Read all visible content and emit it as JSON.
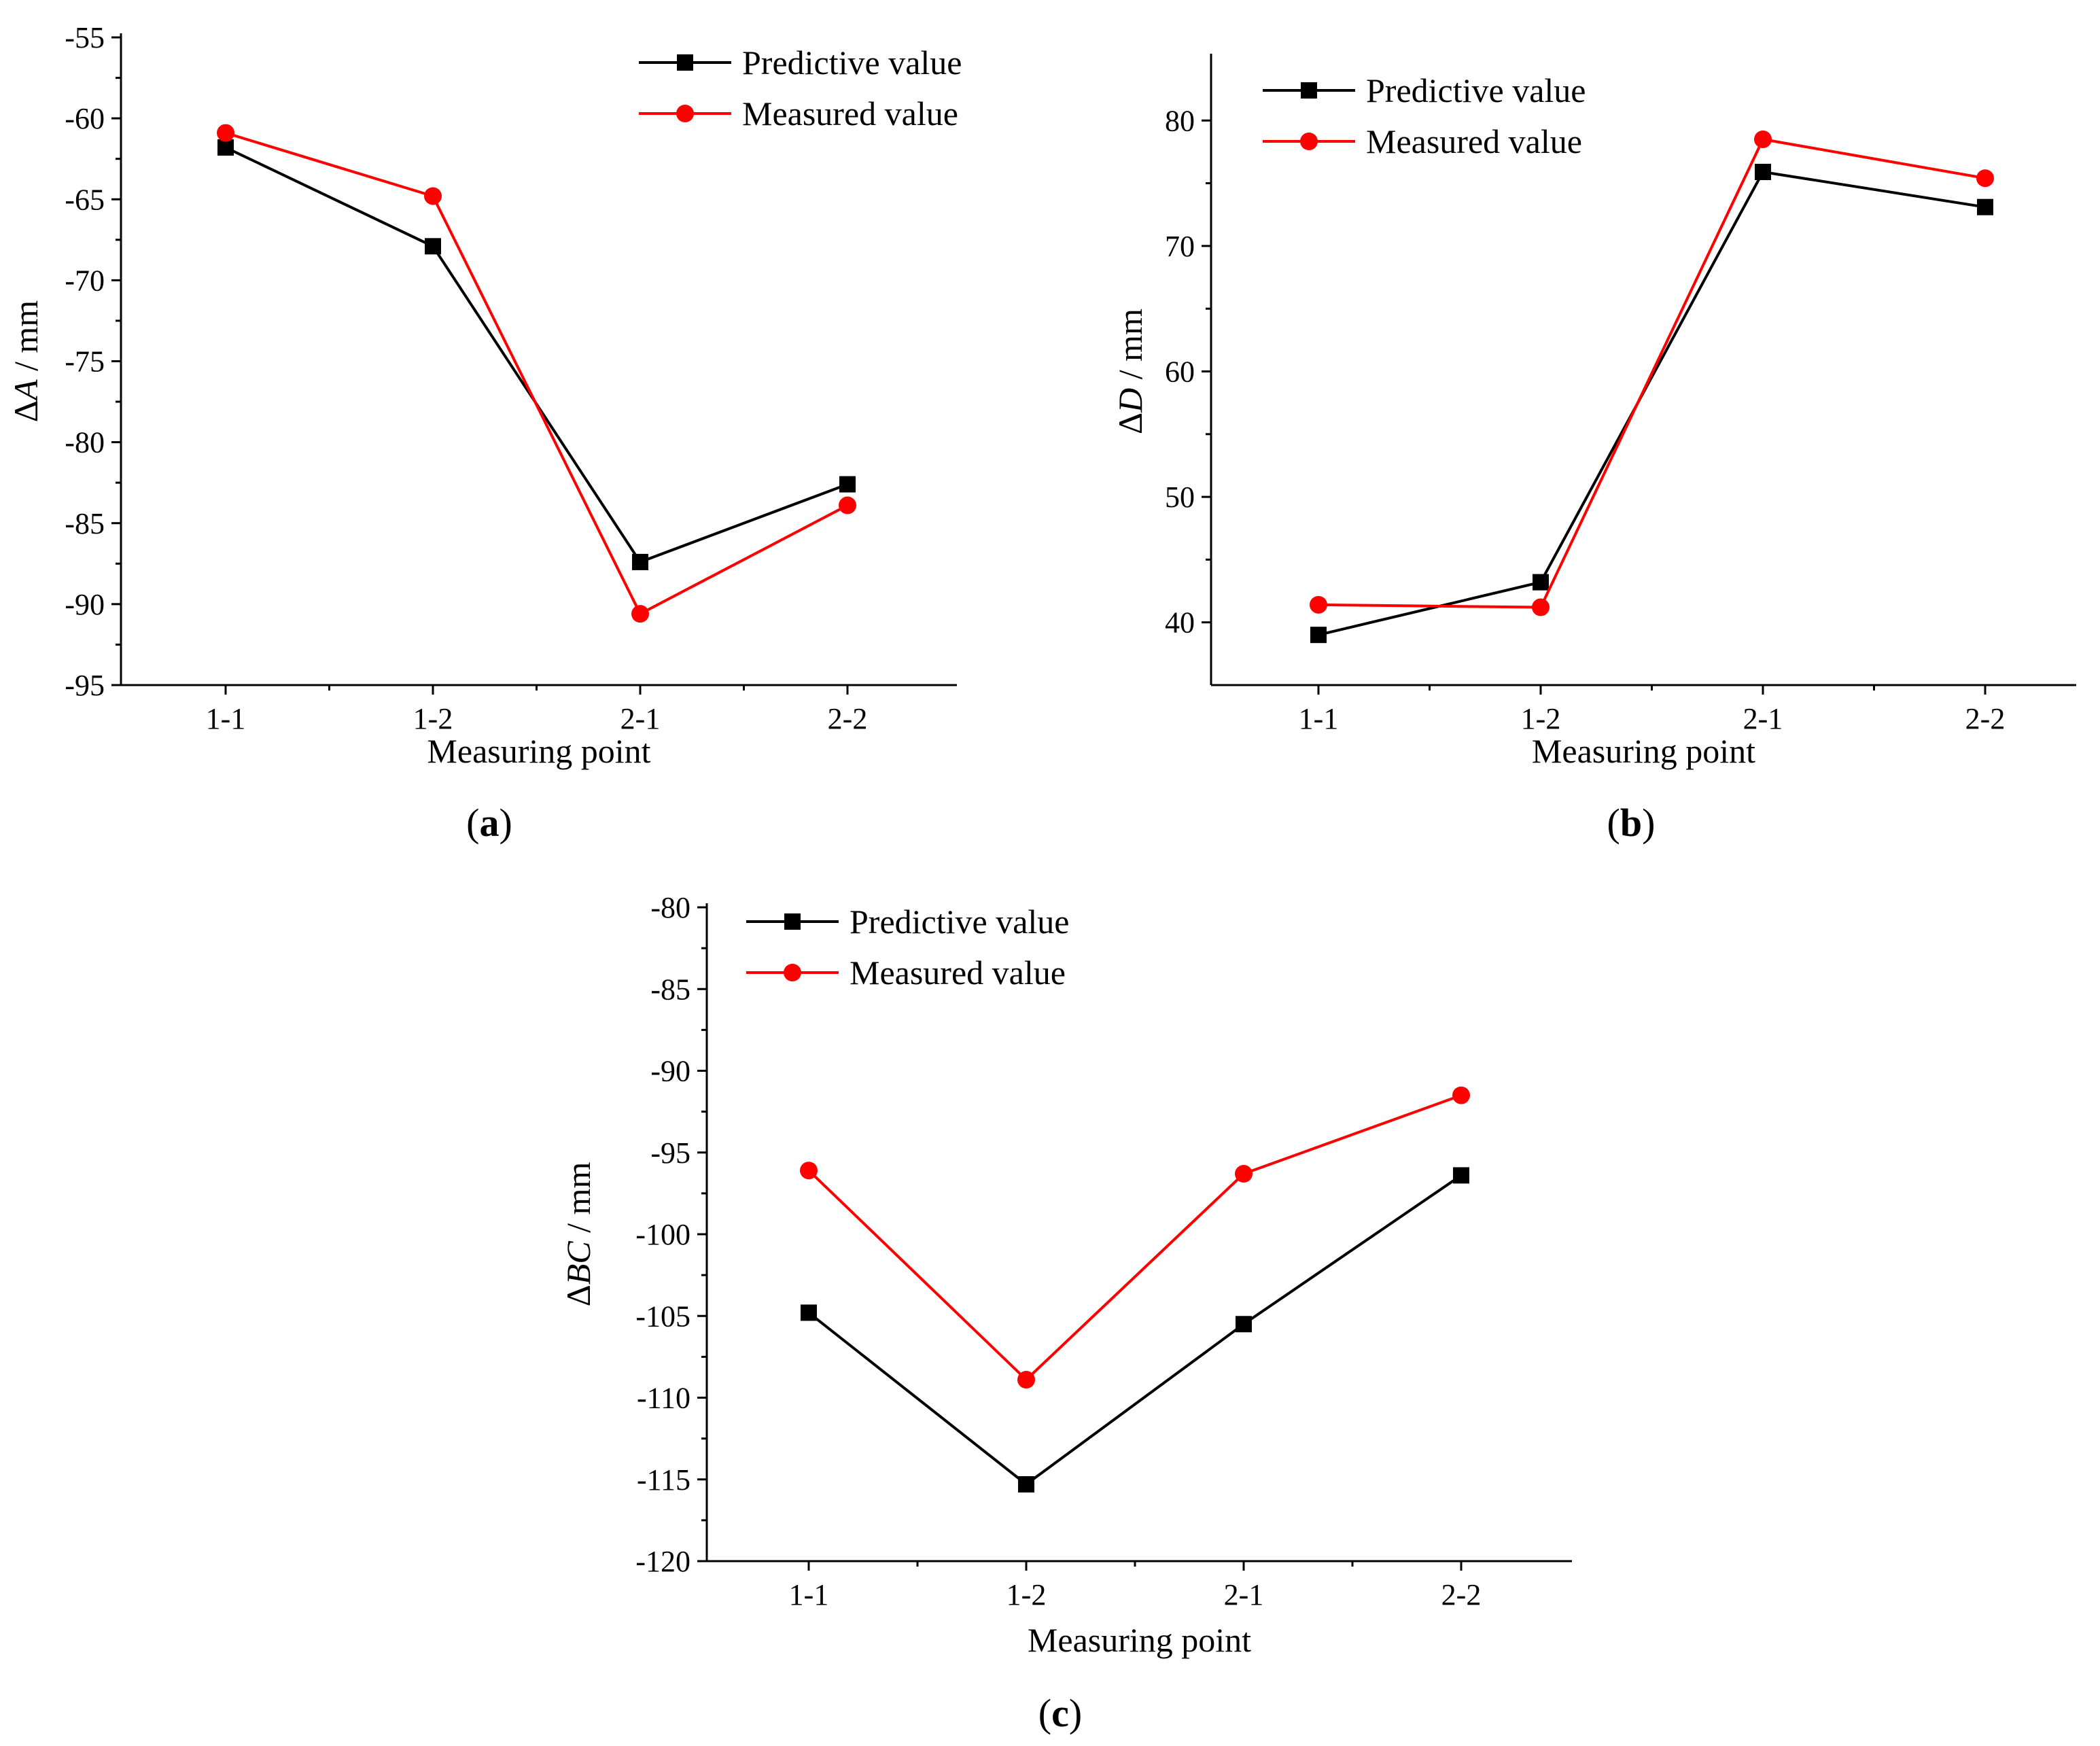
{
  "figure": {
    "series_colors": {
      "predictive": "#000000",
      "measured": "#ff0000"
    }
  },
  "chart_data": [
    {
      "id": "a",
      "type": "line",
      "panel_label": {
        "open": "(",
        "letter": "a",
        "close": ")"
      },
      "xlabel": "Measuring point",
      "ylabel": {
        "prefix": "Δ",
        "symbol": "A",
        "unit": " / mm"
      },
      "categories": [
        "1-1",
        "1-2",
        "2-1",
        "2-2"
      ],
      "ylim": [
        -95,
        -55
      ],
      "yticks": [
        -55,
        -60,
        -65,
        -70,
        -75,
        -80,
        -85,
        -90,
        -95
      ],
      "legend_position": "top-right",
      "series": [
        {
          "name": "Predictive value",
          "marker": "square",
          "color": "#000000",
          "values": [
            -61.8,
            -67.9,
            -87.4,
            -82.6
          ]
        },
        {
          "name": "Measured value",
          "marker": "circle",
          "color": "#ff0000",
          "values": [
            -60.9,
            -64.8,
            -90.6,
            -83.9
          ]
        }
      ]
    },
    {
      "id": "b",
      "type": "line",
      "panel_label": {
        "open": "(",
        "letter": "b",
        "close": ")"
      },
      "xlabel": "Measuring point",
      "ylabel": {
        "prefix": "Δ",
        "symbol": "D",
        "unit": " / mm"
      },
      "categories": [
        "1-1",
        "1-2",
        "2-1",
        "2-2"
      ],
      "ylim": [
        35,
        85
      ],
      "yticks": [
        40,
        50,
        60,
        70,
        80
      ],
      "legend_position": "top-left",
      "series": [
        {
          "name": "Predictive value",
          "marker": "square",
          "color": "#000000",
          "values": [
            39.0,
            43.2,
            75.9,
            73.1
          ]
        },
        {
          "name": "Measured value",
          "marker": "circle",
          "color": "#ff0000",
          "values": [
            41.4,
            41.2,
            78.5,
            75.4
          ]
        }
      ]
    },
    {
      "id": "c",
      "type": "line",
      "panel_label": {
        "open": "(",
        "letter": "c",
        "close": ")"
      },
      "xlabel": "Measuring point",
      "ylabel": {
        "prefix": "Δ",
        "symbol": "BC",
        "unit": " / mm"
      },
      "categories": [
        "1-1",
        "1-2",
        "2-1",
        "2-2"
      ],
      "ylim": [
        -120,
        -80
      ],
      "yticks": [
        -80,
        -85,
        -90,
        -95,
        -100,
        -105,
        -110,
        -115,
        -120
      ],
      "legend_position": "top-left",
      "series": [
        {
          "name": "Predictive value",
          "marker": "square",
          "color": "#000000",
          "values": [
            -104.8,
            -115.3,
            -105.5,
            -96.4
          ]
        },
        {
          "name": "Measured value",
          "marker": "circle",
          "color": "#ff0000",
          "values": [
            -96.1,
            -108.9,
            -96.3,
            -91.5
          ]
        }
      ]
    }
  ]
}
